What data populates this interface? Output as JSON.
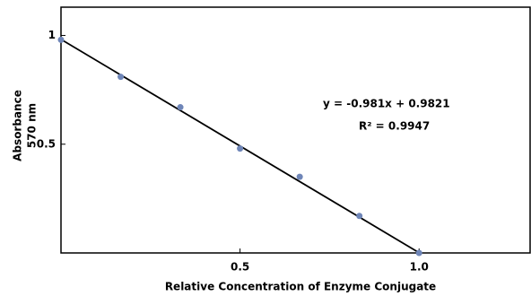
{
  "chart_data": {
    "type": "scatter",
    "x_label": "Relative Concentration of Enzyme Conjugate",
    "y_label": [
      "Absorbance",
      "570 nm"
    ],
    "annotations": [
      "y = -0.981x + 0.9821",
      "R² = 0.9947"
    ],
    "x": [
      0,
      0.1667,
      0.3333,
      0.5,
      0.6667,
      0.8333,
      1.0
    ],
    "values": [
      0.98,
      0.81,
      0.67,
      0.48,
      0.35,
      0.17,
      0.0
    ],
    "color": "#6f86b8",
    "trendline": {
      "x": [
        0,
        1.0
      ],
      "values": [
        0.9821,
        0.0011
      ],
      "color": "#000000"
    },
    "xlim": [
      0,
      1.31
    ],
    "ylim": [
      0,
      1.13
    ],
    "xticks": [
      {
        "value": 0.5,
        "label": "0.5"
      },
      {
        "value": 1.0,
        "label": "1.0"
      }
    ],
    "yticks": [
      0.5,
      1
    ]
  }
}
